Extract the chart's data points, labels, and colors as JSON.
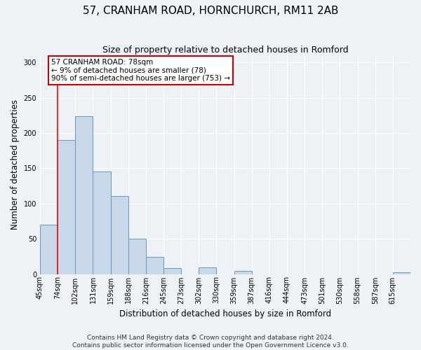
{
  "title": "57, CRANHAM ROAD, HORNCHURCH, RM11 2AB",
  "subtitle": "Size of property relative to detached houses in Romford",
  "xlabel": "Distribution of detached houses by size in Romford",
  "ylabel": "Number of detached properties",
  "bin_labels": [
    "45sqm",
    "74sqm",
    "102sqm",
    "131sqm",
    "159sqm",
    "188sqm",
    "216sqm",
    "245sqm",
    "273sqm",
    "302sqm",
    "330sqm",
    "359sqm",
    "387sqm",
    "416sqm",
    "444sqm",
    "473sqm",
    "501sqm",
    "530sqm",
    "558sqm",
    "587sqm",
    "615sqm"
  ],
  "bar_heights": [
    70,
    190,
    224,
    145,
    111,
    50,
    24,
    8,
    0,
    9,
    0,
    4,
    0,
    0,
    0,
    0,
    0,
    0,
    0,
    0,
    2
  ],
  "bar_color": "#c8d8e8",
  "bar_edge_color": "#6699bb",
  "ylim": [
    0,
    310
  ],
  "yticks": [
    0,
    50,
    100,
    150,
    200,
    250,
    300
  ],
  "red_line_bin": 1,
  "annotation_title": "57 CRANHAM ROAD: 78sqm",
  "annotation_line1": "← 9% of detached houses are smaller (78)",
  "annotation_line2": "90% of semi-detached houses are larger (753) →",
  "annotation_box_color": "#ffffff",
  "annotation_box_edge": "#cc0000",
  "footnote1": "Contains HM Land Registry data © Crown copyright and database right 2024.",
  "footnote2": "Contains public sector information licensed under the Open Government Licence v3.0.",
  "background_color": "#eef2f7",
  "grid_color": "#ffffff",
  "title_fontsize": 11,
  "subtitle_fontsize": 9,
  "axis_label_fontsize": 8.5,
  "tick_fontsize": 7,
  "footnote_fontsize": 6.5,
  "annotation_fontsize": 7.5
}
